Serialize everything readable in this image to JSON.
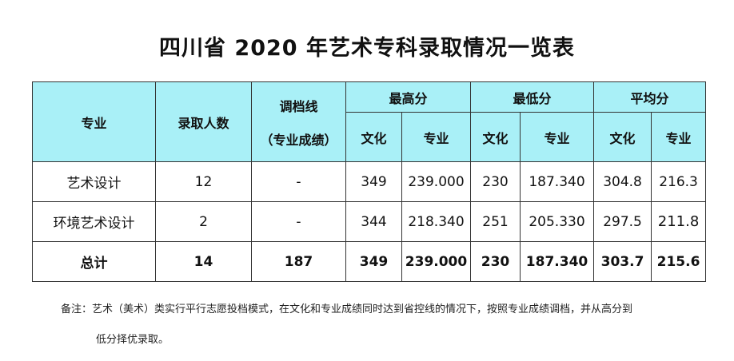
{
  "title": "四川省 2020 年艺术专科录取情况一览表",
  "table": {
    "headers": {
      "major": "专业",
      "admitted_count": "录取人数",
      "cutoff_line": "调档线",
      "cutoff_line_sub": "（专业成绩）",
      "highest": "最高分",
      "lowest": "最低分",
      "average": "平均分",
      "culture": "文化",
      "professional": "专业"
    },
    "rows": [
      {
        "major": "艺术设计",
        "admitted_count": "12",
        "cutoff_line": "-",
        "highest_culture": "349",
        "highest_professional": "239.000",
        "lowest_culture": "230",
        "lowest_professional": "187.340",
        "average_culture": "304.8",
        "average_professional": "216.3"
      },
      {
        "major": "环境艺术设计",
        "admitted_count": "2",
        "cutoff_line": "-",
        "highest_culture": "344",
        "highest_professional": "218.340",
        "lowest_culture": "251",
        "lowest_professional": "205.330",
        "average_culture": "297.5",
        "average_professional": "211.8"
      }
    ],
    "total": {
      "major": "总计",
      "admitted_count": "14",
      "cutoff_line": "187",
      "highest_culture": "349",
      "highest_professional": "239.000",
      "lowest_culture": "230",
      "lowest_professional": "187.340",
      "average_culture": "303.7",
      "average_professional": "215.6"
    }
  },
  "note": {
    "line1": "备注：艺术（美术）类实行平行志愿投档模式，在文化和专业成绩同时达到省控线的情况下，按照专业成绩调档，并从高分到",
    "line2": "低分择优录取。"
  },
  "colors": {
    "header_background": "#a9f0f7",
    "border": "#333333"
  }
}
